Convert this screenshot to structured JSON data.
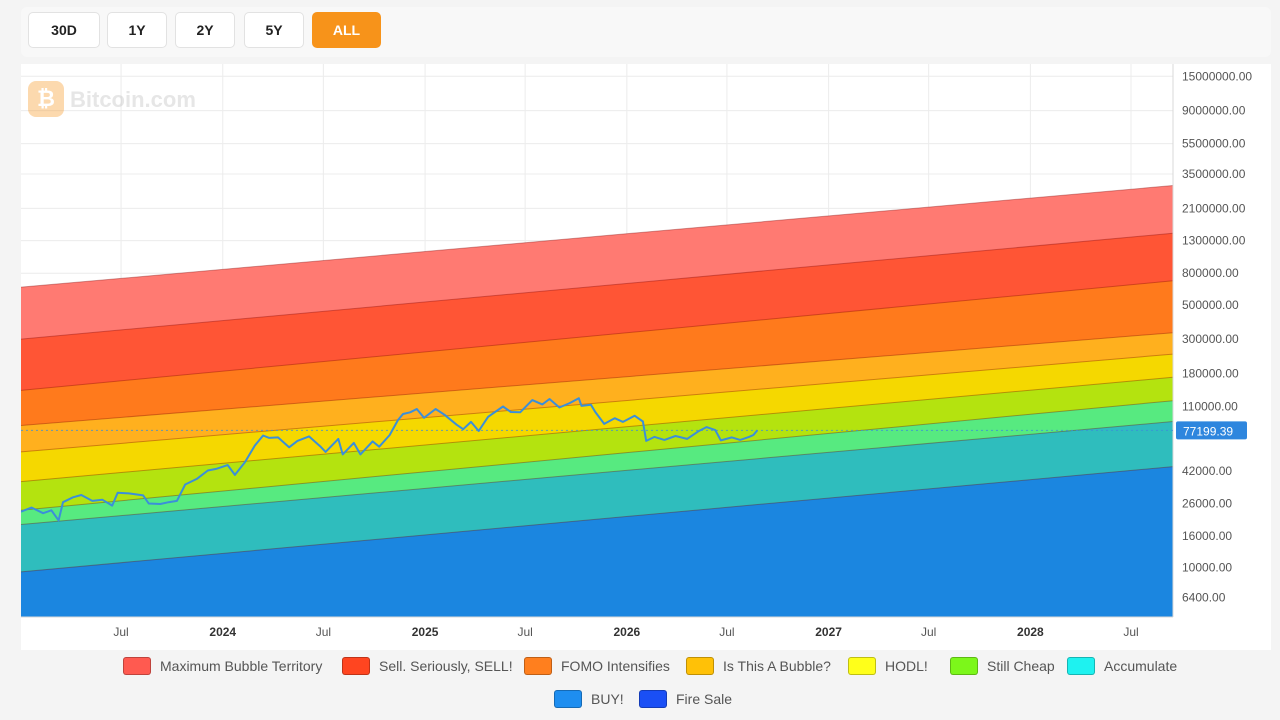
{
  "toolbar": {
    "buttons": [
      {
        "label": "30D",
        "active": false
      },
      {
        "label": "1Y",
        "active": false
      },
      {
        "label": "2Y",
        "active": false
      },
      {
        "label": "5Y",
        "active": false
      },
      {
        "label": "ALL",
        "active": true
      }
    ]
  },
  "watermark": {
    "logo": "₿",
    "text": "Bitcoin.com"
  },
  "colors": {
    "accent": "#f7931a",
    "price_line": "#3b8fd9",
    "price_label_bg": "#2e86de"
  },
  "chart_data": {
    "type": "area",
    "scale": "log",
    "grid": true,
    "x_range": [
      "2023-01-01",
      "2028-09-15"
    ],
    "y_range": [
      4800,
      18000000
    ],
    "x_tick_labels": [
      {
        "date": "2023-07-01",
        "label": "Jul",
        "bold": false
      },
      {
        "date": "2024-01-01",
        "label": "2024",
        "bold": true
      },
      {
        "date": "2024-07-01",
        "label": "Jul",
        "bold": false
      },
      {
        "date": "2025-01-01",
        "label": "2025",
        "bold": true
      },
      {
        "date": "2025-07-01",
        "label": "Jul",
        "bold": false
      },
      {
        "date": "2026-01-01",
        "label": "2026",
        "bold": true
      },
      {
        "date": "2026-07-01",
        "label": "Jul",
        "bold": false
      },
      {
        "date": "2027-01-01",
        "label": "2027",
        "bold": true
      },
      {
        "date": "2027-07-01",
        "label": "Jul",
        "bold": false
      },
      {
        "date": "2028-01-01",
        "label": "2028",
        "bold": true
      },
      {
        "date": "2028-07-01",
        "label": "Jul",
        "bold": false
      }
    ],
    "y_tick_labels": [
      {
        "value": 15000000,
        "label": "15000000.00"
      },
      {
        "value": 9000000,
        "label": "9000000.00"
      },
      {
        "value": 5500000,
        "label": "5500000.00"
      },
      {
        "value": 3500000,
        "label": "3500000.00"
      },
      {
        "value": 2100000,
        "label": "2100000.00"
      },
      {
        "value": 1300000,
        "label": "1300000.00"
      },
      {
        "value": 800000,
        "label": "800000.00"
      },
      {
        "value": 500000,
        "label": "500000.00"
      },
      {
        "value": 300000,
        "label": "300000.00"
      },
      {
        "value": 180000,
        "label": "180000.00"
      },
      {
        "value": 110000,
        "label": "110000.00"
      },
      {
        "value": 42000,
        "label": "42000.00"
      },
      {
        "value": 26000,
        "label": "26000.00"
      },
      {
        "value": 16000,
        "label": "16000.00"
      },
      {
        "value": 10000,
        "label": "10000.00"
      },
      {
        "value": 6400,
        "label": "6400.00"
      }
    ],
    "bands": [
      {
        "name": "Maximum Bubble Territory",
        "color": "#ff5a50",
        "fill": "#ff7a72",
        "start": 650000,
        "end": 2950000
      },
      {
        "name": "Sell. Seriously, SELL!",
        "color": "#ff4520",
        "fill": "#ff5535",
        "start": 300000,
        "end": 1450000
      },
      {
        "name": "FOMO Intensifies",
        "color": "#ff7f1e",
        "fill": "#ff7a1c",
        "start": 140000,
        "end": 715000
      },
      {
        "name": "Is This A Bubble?",
        "color": "#ffc107",
        "fill": "#ffb01e",
        "start": 83000,
        "end": 330000
      },
      {
        "name": "HODL!",
        "color": "#ffff1a",
        "fill": "#f5d800",
        "start": 56000,
        "end": 240000
      },
      {
        "name": "Still Cheap",
        "color": "#7cf71a",
        "fill": "#b4e30f",
        "start": 36000,
        "end": 170000
      },
      {
        "name": "Accumulate",
        "color": "#1ef2f0",
        "fill": "#57ea80",
        "start": 23500,
        "end": 120000
      },
      {
        "name": "BUY!",
        "color": "#1e8ef0",
        "fill": "#2fbdbd",
        "start": 19000,
        "end": 88000
      },
      {
        "name": "Fire Sale",
        "color": "#1a4ff5",
        "fill": "#1b86e0",
        "start": 9400,
        "end": 45000
      }
    ],
    "price_series": [
      [
        "2023-01-01",
        23000
      ],
      [
        "2023-01-20",
        24500
      ],
      [
        "2023-02-10",
        22500
      ],
      [
        "2023-02-25",
        23500
      ],
      [
        "2023-03-10",
        20200
      ],
      [
        "2023-03-18",
        26500
      ],
      [
        "2023-04-05",
        28500
      ],
      [
        "2023-04-20",
        29500
      ],
      [
        "2023-05-10",
        27000
      ],
      [
        "2023-05-28",
        27500
      ],
      [
        "2023-06-15",
        25200
      ],
      [
        "2023-06-25",
        30500
      ],
      [
        "2023-07-15",
        30200
      ],
      [
        "2023-08-10",
        29300
      ],
      [
        "2023-08-20",
        26000
      ],
      [
        "2023-09-10",
        25800
      ],
      [
        "2023-09-25",
        26500
      ],
      [
        "2023-10-10",
        27000
      ],
      [
        "2023-10-25",
        34500
      ],
      [
        "2023-11-15",
        37500
      ],
      [
        "2023-12-05",
        42500
      ],
      [
        "2023-12-20",
        43500
      ],
      [
        "2024-01-10",
        46000
      ],
      [
        "2024-01-23",
        39800
      ],
      [
        "2024-02-10",
        48000
      ],
      [
        "2024-02-28",
        61500
      ],
      [
        "2024-03-14",
        71500
      ],
      [
        "2024-03-25",
        69000
      ],
      [
        "2024-04-10",
        69500
      ],
      [
        "2024-04-30",
        60000
      ],
      [
        "2024-05-15",
        66000
      ],
      [
        "2024-06-05",
        70500
      ],
      [
        "2024-06-25",
        61000
      ],
      [
        "2024-07-05",
        56000
      ],
      [
        "2024-07-28",
        68000
      ],
      [
        "2024-08-05",
        54000
      ],
      [
        "2024-08-25",
        64000
      ],
      [
        "2024-09-06",
        54000
      ],
      [
        "2024-09-28",
        65500
      ],
      [
        "2024-10-10",
        60500
      ],
      [
        "2024-10-29",
        72000
      ],
      [
        "2024-11-13",
        90000
      ],
      [
        "2024-11-22",
        98500
      ],
      [
        "2024-12-05",
        101000
      ],
      [
        "2024-12-17",
        106000
      ],
      [
        "2024-12-30",
        93000
      ],
      [
        "2025-01-20",
        106000
      ],
      [
        "2025-02-05",
        97500
      ],
      [
        "2025-02-27",
        84000
      ],
      [
        "2025-03-11",
        78500
      ],
      [
        "2025-03-25",
        87500
      ],
      [
        "2025-04-08",
        76500
      ],
      [
        "2025-04-25",
        94500
      ],
      [
        "2025-05-22",
        110000
      ],
      [
        "2025-06-05",
        101500
      ],
      [
        "2025-06-22",
        101000
      ],
      [
        "2025-07-14",
        121000
      ],
      [
        "2025-08-01",
        113500
      ],
      [
        "2025-08-14",
        123000
      ],
      [
        "2025-09-01",
        108500
      ],
      [
        "2025-09-20",
        116000
      ],
      [
        "2025-10-06",
        124500
      ],
      [
        "2025-10-11",
        111000
      ],
      [
        "2025-10-28",
        113000
      ],
      [
        "2025-11-05",
        101500
      ],
      [
        "2025-11-21",
        85000
      ],
      [
        "2025-12-10",
        92500
      ],
      [
        "2025-12-25",
        87500
      ],
      [
        "2026-01-15",
        96000
      ],
      [
        "2026-01-30",
        88000
      ],
      [
        "2026-02-05",
        66000
      ],
      [
        "2026-02-20",
        70000
      ],
      [
        "2026-03-10",
        67000
      ],
      [
        "2026-03-30",
        71000
      ],
      [
        "2026-04-20",
        68000
      ],
      [
        "2026-05-10",
        76000
      ],
      [
        "2026-05-25",
        81000
      ],
      [
        "2026-06-10",
        77500
      ],
      [
        "2026-06-20",
        66500
      ],
      [
        "2026-07-10",
        69500
      ],
      [
        "2026-07-25",
        67000
      ],
      [
        "2026-08-10",
        70000
      ],
      [
        "2026-08-18",
        72000
      ],
      [
        "2026-08-25",
        77199.39
      ]
    ],
    "last_price": 77199.39,
    "last_price_label": "77199.39"
  }
}
